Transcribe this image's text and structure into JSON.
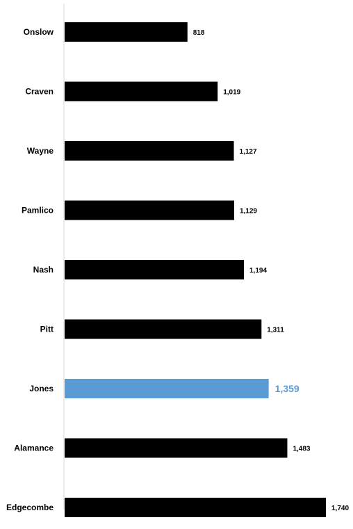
{
  "chart_data": {
    "type": "bar",
    "orientation": "horizontal",
    "title": "",
    "xlabel": "",
    "ylabel": "",
    "categories": [
      "Onslow",
      "Craven",
      "Wayne",
      "Pamlico",
      "Nash",
      "Pitt",
      "Jones",
      "Alamance",
      "Edgecombe"
    ],
    "values": [
      818,
      1019,
      1127,
      1129,
      1194,
      1311,
      1359,
      1483,
      1740
    ],
    "value_labels": [
      "818",
      "1,019",
      "1,127",
      "1,129",
      "1,194",
      "1,311",
      "1,359",
      "1,483",
      "1,740"
    ],
    "highlight_index": 6,
    "xlim": [
      0,
      1740
    ],
    "grid": false,
    "legend": "none",
    "colors": {
      "bar": "#000000",
      "highlight": "#5b9bd5",
      "axis": "#d9d9d9"
    }
  }
}
